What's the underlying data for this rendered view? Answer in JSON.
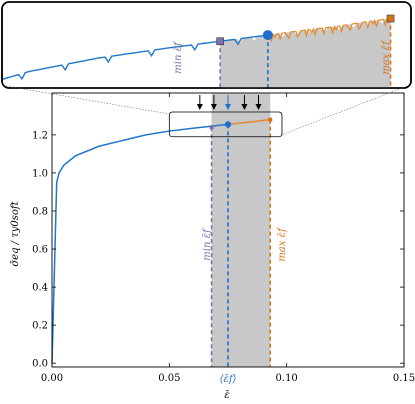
{
  "chart_data": {
    "type": "line",
    "xlabel": "ε̄",
    "ylabel": "σ̄eq / τy0soft",
    "xlim": [
      0,
      0.15
    ],
    "ylim": [
      -0.02,
      1.42
    ],
    "xticks": [
      "0.00",
      "0.05",
      "0.10",
      "0.15"
    ],
    "yticks": [
      "0.0",
      "0.2",
      "0.4",
      "0.6",
      "0.8",
      "1.0",
      "1.2"
    ],
    "xtick_values": [
      0,
      0.05,
      0.1,
      0.15
    ],
    "ytick_values": [
      0,
      0.2,
      0.4,
      0.6,
      0.8,
      1.0,
      1.2
    ],
    "grid": false,
    "series": [
      {
        "role": "stress-strain response",
        "color": "#1f77c9",
        "x": [
          0,
          0.002,
          0.003,
          0.005,
          0.01,
          0.02,
          0.03,
          0.04,
          0.05,
          0.06,
          0.075
        ],
        "y": [
          0,
          0.95,
          1.0,
          1.04,
          1.09,
          1.14,
          1.17,
          1.2,
          1.22,
          1.235,
          1.255
        ]
      },
      {
        "role": "post-average continuation",
        "color": "#e8892a",
        "x": [
          0.075,
          0.08,
          0.085,
          0.09,
          0.093
        ],
        "y": [
          1.255,
          1.262,
          1.268,
          1.276,
          1.28
        ]
      }
    ],
    "shaded_region": {
      "x0": 0.068,
      "x1": 0.093,
      "color": "#c8c8c8"
    },
    "markers": [
      {
        "role": "min",
        "x": 0.068,
        "y": 1.24,
        "color": "#7b70b0",
        "label": "min ε̄f"
      },
      {
        "role": "mean",
        "x": 0.075,
        "y": 1.255,
        "color": "#1f6fd0",
        "label": "⟨ε̄f⟩"
      },
      {
        "role": "max",
        "x": 0.093,
        "y": 1.28,
        "color": "#d87418",
        "label": "max ε̄f"
      }
    ],
    "arrows_x": [
      0.063,
      0.069,
      0.075,
      0.082,
      0.088
    ],
    "arrow_colors": [
      "#000000",
      "#000000",
      "#1f6fd0",
      "#000000",
      "#000000"
    ],
    "zoom_box": {
      "x0": 0.05,
      "x1": 0.098,
      "y0": 1.19,
      "y1": 1.32
    },
    "inset": {
      "xlim": [
        0.036,
        0.096
      ],
      "ylim": [
        1.175,
        1.305
      ]
    }
  }
}
